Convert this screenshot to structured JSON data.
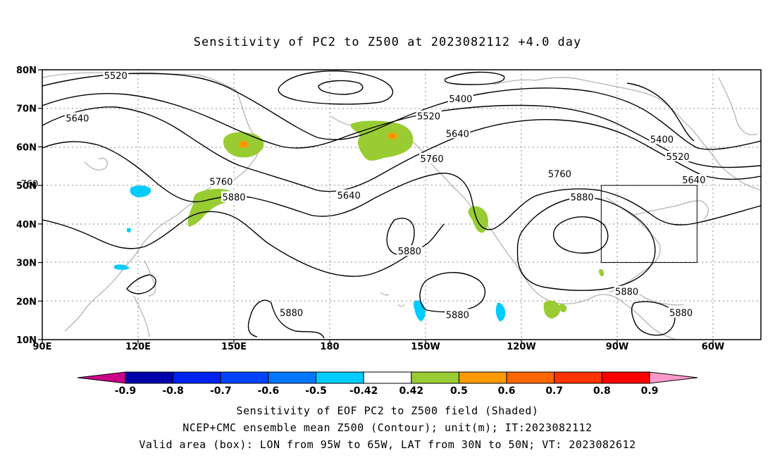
{
  "title": "Sensitivity of PC2 to Z500 at 2023082112 +4.0 day",
  "map": {
    "lat_labels": [
      "80N",
      "70N",
      "60N",
      "50N",
      "40N",
      "30N",
      "20N",
      "10N"
    ],
    "lon_labels": [
      "90E",
      "120E",
      "150E",
      "180",
      "150W",
      "120W",
      "90W",
      "60W"
    ],
    "contour_labels": [
      {
        "text": "5520",
        "lon": 113,
        "lat": 78.5
      },
      {
        "text": "5400",
        "lon": -139,
        "lat": 72.5
      },
      {
        "text": "5520",
        "lon": -149,
        "lat": 68
      },
      {
        "text": "5640",
        "lon": 101,
        "lat": 67.5
      },
      {
        "text": "5640",
        "lon": -140,
        "lat": 63.5
      },
      {
        "text": "5760",
        "lon": -148,
        "lat": 57
      },
      {
        "text": "5400",
        "lon": -76,
        "lat": 62
      },
      {
        "text": "5520",
        "lon": -71,
        "lat": 57.5
      },
      {
        "text": "5640",
        "lon": -66,
        "lat": 51.5
      },
      {
        "text": "5760",
        "lon": -108,
        "lat": 53
      },
      {
        "text": "5880",
        "lon": -101,
        "lat": 47
      },
      {
        "text": "5760",
        "lon": 146,
        "lat": 51
      },
      {
        "text": "5880",
        "lon": 150,
        "lat": 47
      },
      {
        "text": "5640",
        "lon": -174,
        "lat": 47.5
      },
      {
        "text": "5880",
        "lon": -155,
        "lat": 33
      },
      {
        "text": "5880",
        "lon": 168,
        "lat": 17
      },
      {
        "text": "5880",
        "lon": -140,
        "lat": 16.5
      },
      {
        "text": "5880",
        "lon": -87,
        "lat": 22.5
      },
      {
        "text": "5880",
        "lon": -70,
        "lat": 17
      },
      {
        "text": "760",
        "lon": 86,
        "lat": 50.5
      }
    ],
    "valid_box": {
      "lon_min": -95,
      "lon_max": -65,
      "lat_min": 30,
      "lat_max": 50
    },
    "colors": {
      "positive_low": "#99cc33",
      "positive_mid": "#ff9900",
      "negative_low": "#00ccff",
      "coast": "#b4b4b4",
      "grid": "#888888"
    }
  },
  "colorbar": {
    "labels": [
      "-0.9",
      "-0.8",
      "-0.7",
      "-0.6",
      "-0.5",
      "-0.42",
      "0.42",
      "0.5",
      "0.6",
      "0.7",
      "0.8",
      "0.9"
    ],
    "colors": [
      "#0000aa",
      "#0022ee",
      "#0044ff",
      "#0077ff",
      "#00ccff",
      "#ffffff",
      "#99cc33",
      "#ff9900",
      "#ff6600",
      "#ff3300",
      "#ff0000"
    ],
    "low_end_color": "#cc0088",
    "high_end_color": "#ff99cc"
  },
  "captions": [
    "Sensitivity of EOF PC2 to Z500 field (Shaded)",
    "NCEP+CMC ensemble mean Z500 (Contour); unit(m); IT:2023082112",
    "Valid area (box): LON from 95W to 65W, LAT from 30N to 50N; VT: 2023082612"
  ]
}
